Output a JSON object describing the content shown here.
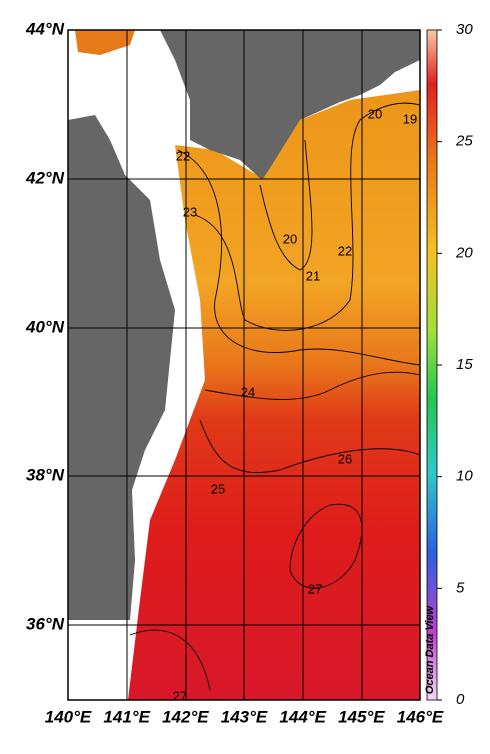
{
  "map": {
    "lat_labels": [
      "44°N",
      "42°N",
      "40°N",
      "38°N",
      "36°N"
    ],
    "lon_labels": [
      "140°E",
      "141°E",
      "142°E",
      "143°E",
      "144°E",
      "145°E",
      "146°E"
    ],
    "colorbar": {
      "range": [
        0,
        30
      ],
      "ticks": [
        0,
        5,
        10,
        15,
        20,
        25,
        30
      ]
    },
    "contour_labels": [
      20,
      19,
      22,
      23,
      20,
      21,
      22,
      24,
      26,
      25,
      27,
      27
    ],
    "watermark": "Ocean Data View"
  }
}
